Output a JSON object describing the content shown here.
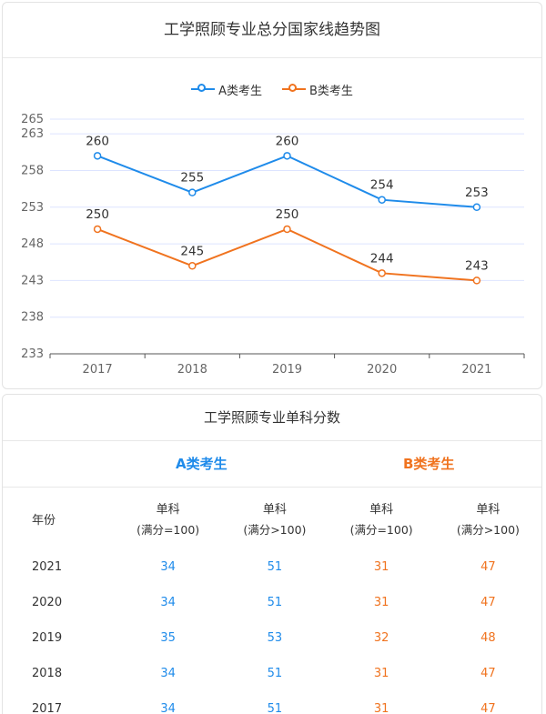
{
  "chart_title": "工学照顾专业总分国家线趋势图",
  "colors": {
    "a": "#1f8bea",
    "b": "#f0731f",
    "grid": "#dde4ff",
    "axis": "#555555"
  },
  "chart_data": {
    "type": "line",
    "title": "工学照顾专业总分国家线趋势图",
    "categories": [
      "2017",
      "2018",
      "2019",
      "2020",
      "2021"
    ],
    "series": [
      {
        "name": "A类考生",
        "values": [
          260,
          255,
          260,
          254,
          253
        ]
      },
      {
        "name": "B类考生",
        "values": [
          250,
          245,
          250,
          244,
          243
        ]
      }
    ],
    "yticks": [
      233,
      238,
      243,
      248,
      253,
      258,
      263,
      265
    ],
    "ylim": [
      233,
      265
    ],
    "xlabel": "",
    "ylabel": "",
    "legend": "top-center"
  },
  "table": {
    "title": "工学照顾专业单科分数",
    "group_a": "A类考生",
    "group_b": "B类考生",
    "year_header": "年份",
    "headers": [
      {
        "line1": "单科",
        "line2": "(满分=100)"
      },
      {
        "line1": "单科",
        "line2": "(满分>100)"
      },
      {
        "line1": "单科",
        "line2": "(满分=100)"
      },
      {
        "line1": "单科",
        "line2": "(满分>100)"
      }
    ],
    "rows": [
      {
        "year": "2021",
        "a1": "34",
        "a2": "51",
        "b1": "31",
        "b2": "47"
      },
      {
        "year": "2020",
        "a1": "34",
        "a2": "51",
        "b1": "31",
        "b2": "47"
      },
      {
        "year": "2019",
        "a1": "35",
        "a2": "53",
        "b1": "32",
        "b2": "48"
      },
      {
        "year": "2018",
        "a1": "34",
        "a2": "51",
        "b1": "31",
        "b2": "47"
      },
      {
        "year": "2017",
        "a1": "34",
        "a2": "51",
        "b1": "31",
        "b2": "47"
      }
    ]
  }
}
